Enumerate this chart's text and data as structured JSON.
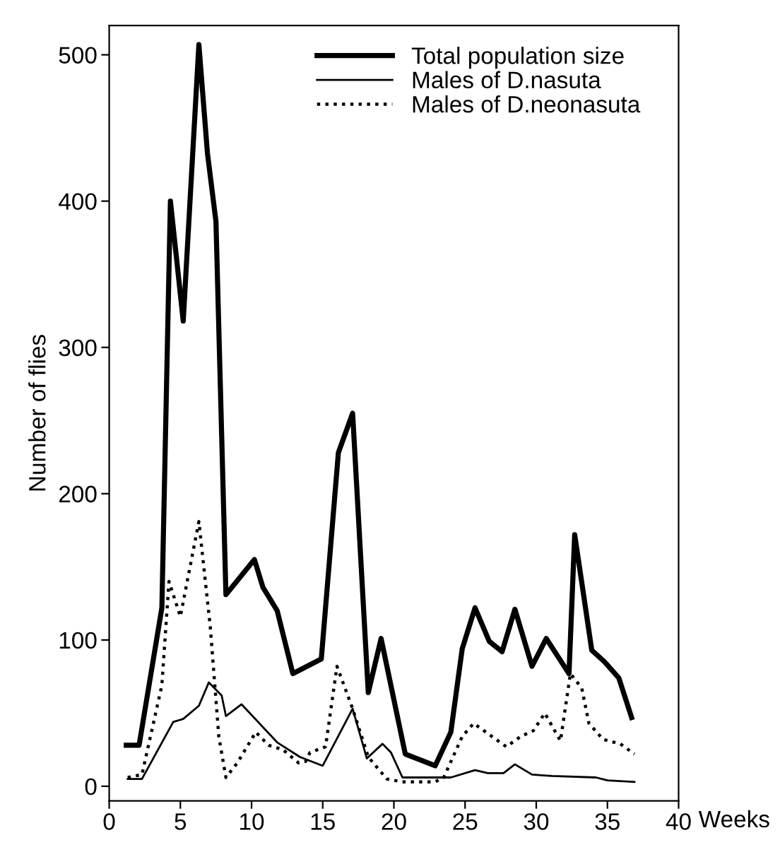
{
  "chart_data": {
    "type": "line",
    "xlabel": "Weeks",
    "ylabel": "Number of flies",
    "xlim": [
      0,
      40
    ],
    "xticks": [
      0,
      5,
      10,
      15,
      20,
      25,
      30,
      35,
      40
    ],
    "ylim": [
      -10,
      520
    ],
    "yticks": [
      0,
      100,
      200,
      300,
      400,
      500
    ],
    "grid": false,
    "legend": "top right",
    "marker": "none",
    "series": [
      {
        "name": "Total population size",
        "color": "#000000",
        "line_style": "solid",
        "x": [
          1.2,
          2.1,
          3.7,
          4.3,
          5.2,
          6.3,
          6.9,
          7.5,
          8.2,
          10.2,
          10.8,
          11.8,
          12.9,
          14.9,
          16.1,
          17.1,
          18.2,
          19.1,
          20.8,
          22.9,
          24.0,
          24.8,
          25.7,
          26.7,
          27.6,
          28.5,
          29.7,
          30.7,
          32.3,
          32.7,
          33.9,
          34.8,
          35.8,
          36.7
        ],
        "values": [
          28,
          28,
          122,
          400,
          318,
          507,
          433,
          386,
          131,
          155,
          136,
          120,
          77,
          87,
          228,
          255,
          64,
          101,
          22,
          14,
          37,
          94,
          122,
          99,
          92,
          121,
          82,
          101,
          77,
          172,
          93,
          85,
          74,
          47
        ]
      },
      {
        "name": "Males of D.nasuta",
        "color": "#000000",
        "line_style": "solid",
        "x": [
          1.3,
          2.3,
          4.5,
          5.2,
          6.3,
          7.0,
          7.9,
          8.2,
          9.3,
          11.8,
          13.4,
          15.0,
          17.1,
          18.1,
          19.2,
          19.8,
          20.6,
          24.0,
          25.7,
          26.6,
          27.7,
          28.5,
          29.7,
          31.1,
          34.2,
          35.0,
          36.9
        ],
        "values": [
          5,
          5,
          44,
          46,
          55,
          71,
          62,
          48,
          56,
          30,
          20,
          14,
          53,
          19,
          29,
          23,
          6,
          6,
          11,
          9,
          9,
          15,
          8,
          7,
          6,
          4,
          3
        ]
      },
      {
        "name": "Males of D.neonasuta",
        "color": "#000000",
        "line_style": "dotted",
        "x": [
          1.3,
          2.3,
          3.7,
          4.2,
          5.0,
          6.3,
          7.1,
          7.7,
          8.2,
          9.0,
          10.3,
          11.2,
          12.2,
          13.3,
          13.8,
          14.1,
          15.2,
          16.0,
          17.1,
          18.2,
          19.5,
          20.6,
          22.9,
          23.5,
          24.8,
          25.6,
          27.9,
          28.9,
          29.8,
          30.6,
          31.7,
          32.4,
          33.2,
          33.7,
          34.7,
          35.9,
          36.9
        ],
        "values": [
          6,
          8,
          69,
          140,
          116,
          181,
          109,
          34,
          6,
          16,
          37,
          28,
          25,
          16,
          17,
          23,
          27,
          82,
          53,
          20,
          5,
          3,
          3,
          6,
          34,
          43,
          27,
          34,
          38,
          50,
          31,
          77,
          67,
          43,
          32,
          29,
          22
        ]
      }
    ]
  }
}
